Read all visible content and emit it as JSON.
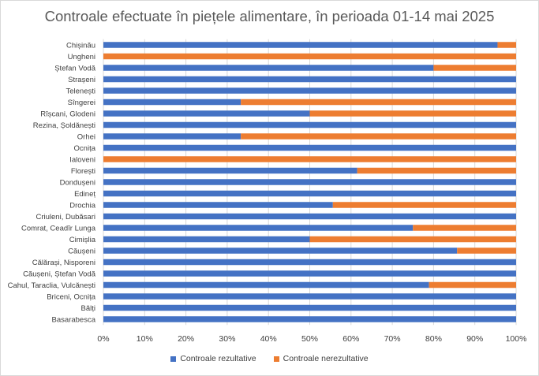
{
  "chart_data": {
    "type": "bar",
    "orientation": "horizontal",
    "stacked": "percent",
    "title": "Controale efectuate în piețele alimentare, în perioada 01-14 mai 2025",
    "categories": [
      "Chișinău",
      "Ungheni",
      "Ștefan Vodă",
      "Strașeni",
      "Telenești",
      "Sîngerei",
      "Rîșcani, Glodeni",
      "Rezina, Șoldănești",
      "Orhei",
      "Ocnița",
      "Ialoveni",
      "Florești",
      "Dondușeni",
      "Edineț",
      "Drochia",
      "Criuleni, Dubăsari",
      "Comrat, Ceadîr Lunga",
      "Cimișlia",
      "Căușeni",
      "Călărași, Nisporeni",
      "Căușeni, Ștefan Vodă",
      "Cahul, Taraclia, Vulcănești",
      "Briceni, Ocnița",
      "Bălți",
      "Basarabesca"
    ],
    "series": [
      {
        "name": "Controale rezultative",
        "color": "#4472c4",
        "values": [
          95.5,
          0,
          80,
          100,
          100,
          33.3,
          50,
          100,
          33.3,
          100,
          0,
          61.5,
          100,
          100,
          55.6,
          100,
          75,
          50,
          85.7,
          100,
          100,
          78.9,
          100,
          100,
          100
        ]
      },
      {
        "name": "Controale nerezultative",
        "color": "#ed7d31",
        "values": [
          4.5,
          100,
          20,
          0,
          0,
          66.7,
          50,
          0,
          66.7,
          0,
          100,
          38.5,
          0,
          0,
          44.4,
          0,
          25,
          50,
          14.3,
          0,
          0,
          21.1,
          0,
          0,
          0
        ]
      }
    ],
    "xlim": [
      0,
      100
    ],
    "x_ticks": [
      "0%",
      "10%",
      "20%",
      "30%",
      "40%",
      "50%",
      "60%",
      "70%",
      "80%",
      "90%",
      "100%"
    ],
    "grid": true,
    "legend_position": "bottom"
  }
}
